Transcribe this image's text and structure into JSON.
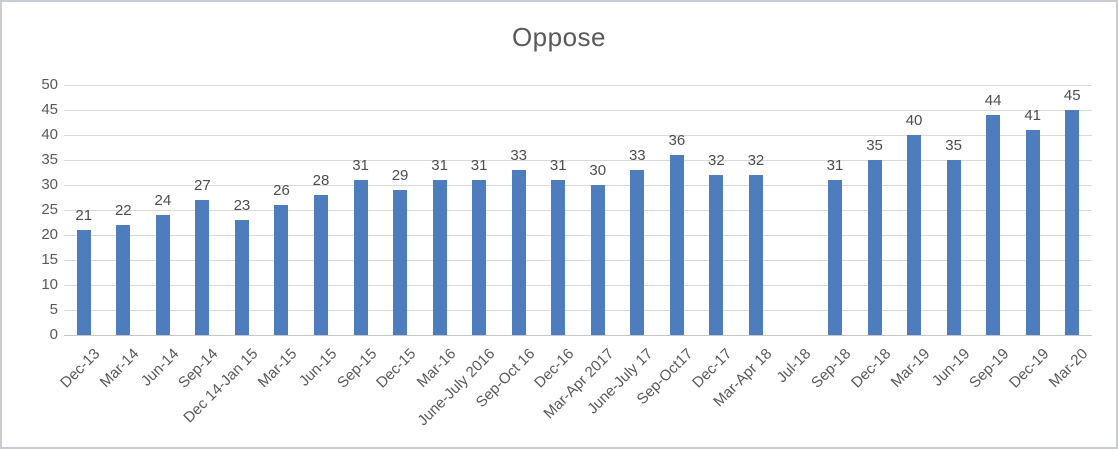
{
  "chart_data": {
    "type": "bar",
    "title": "Oppose",
    "categories": [
      "Dec-13",
      "Mar-14",
      "Jun-14",
      "Sep-14",
      "Dec 14-Jan 15",
      "Mar-15",
      "Jun-15",
      "Sep-15",
      "Dec-15",
      "Mar-16",
      "June-July 2016",
      "Sep-Oct 16",
      "Dec-16",
      "Mar-Apr 2017",
      "June-July 17",
      "Sep-Oct17",
      "Dec-17",
      "Mar-Apr 18",
      "Jul-18",
      "Sep-18",
      "Dec-18",
      "Mar-19",
      "Jun-19",
      "Sep-19",
      "Dec-19",
      "Mar-20"
    ],
    "values": [
      21,
      22,
      24,
      27,
      23,
      26,
      28,
      31,
      29,
      31,
      31,
      33,
      31,
      30,
      33,
      36,
      32,
      32,
      null,
      31,
      35,
      40,
      35,
      44,
      41,
      45
    ],
    "xlabel": "",
    "ylabel": "",
    "ylim": [
      0,
      50
    ],
    "ytick_step": 5,
    "yticks": [
      0,
      5,
      10,
      15,
      20,
      25,
      30,
      35,
      40,
      45,
      50
    ],
    "grid": true,
    "legend": false,
    "data_labels": true,
    "x_label_rotation_deg": 45,
    "colors": {
      "bar": "#4e7dbd",
      "gridline": "#d9d9d9",
      "axis_line": "#c6c6c6",
      "axis_text": "#595959",
      "data_label_text": "#4d4d4d",
      "title_text": "#595959",
      "background": "#ffffff",
      "frame_border": "#c9cdd1"
    }
  }
}
